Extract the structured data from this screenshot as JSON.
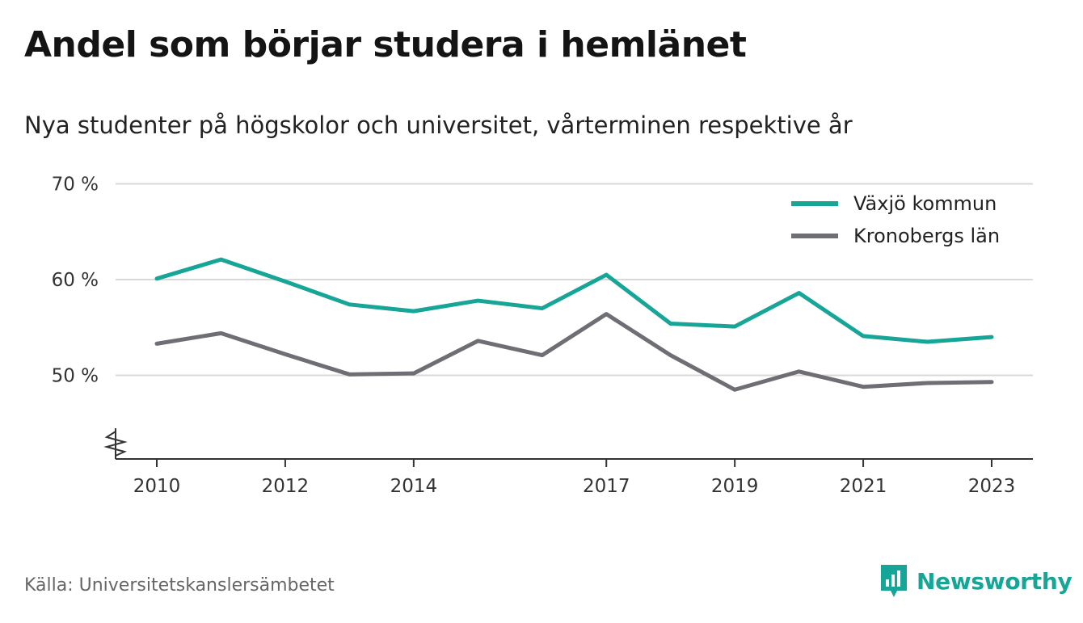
{
  "header": {
    "title": "Andel som börjar studera i hemlänet",
    "subtitle": "Nya studenter på högskolor och universitet, vårterminen respektive år"
  },
  "footer": {
    "source": "Källa: Universitetskanslersämbetet",
    "brand": "Newsworthy",
    "brand_icon": "bar-chart-bubble-icon"
  },
  "colors": {
    "series_1": "#16a596",
    "series_2": "#6e6e74",
    "grid": "#d9d9d9",
    "axis": "#333333",
    "brand": "#16a596"
  },
  "chart_data": {
    "type": "line",
    "title": "Andel som börjar studera i hemlänet",
    "subtitle": "Nya studenter på högskolor och universitet, vårterminen respektive år",
    "x": [
      2010,
      2011,
      2012,
      2013,
      2014,
      2015,
      2016,
      2017,
      2018,
      2019,
      2020,
      2021,
      2022,
      2023
    ],
    "x_ticks": [
      2010,
      2012,
      2014,
      2017,
      2019,
      2021,
      2023
    ],
    "x_tick_labels": [
      "2010",
      "2012",
      "2014",
      "2017",
      "2019",
      "2021",
      "2023"
    ],
    "y_ticks": [
      50,
      60,
      70
    ],
    "y_tick_labels": [
      "50 %",
      "60 %",
      "70 %"
    ],
    "ylim": [
      41,
      70
    ],
    "axis_break": true,
    "grid": true,
    "legend_position": "top-right",
    "series": [
      {
        "name": "Växjö kommun",
        "color": "#16a596",
        "values": [
          60.1,
          62.1,
          59.8,
          57.4,
          56.7,
          57.8,
          57.0,
          60.5,
          55.4,
          55.1,
          58.6,
          54.1,
          53.5,
          54.0
        ]
      },
      {
        "name": "Kronobergs län",
        "color": "#6e6e74",
        "values": [
          53.3,
          54.4,
          52.2,
          50.1,
          50.2,
          53.6,
          52.1,
          56.4,
          52.1,
          48.5,
          50.4,
          48.8,
          49.2,
          49.3
        ]
      }
    ]
  }
}
